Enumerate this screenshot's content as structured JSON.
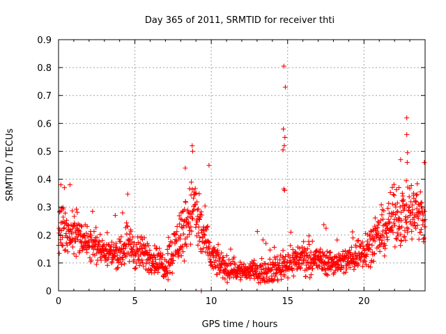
{
  "chart_data": {
    "type": "scatter",
    "title": "Day 365 of 2011, SRMTID for receiver thti",
    "xlabel": "GPS time / hours",
    "ylabel": "SRMTID / TECUs",
    "xlim": [
      0,
      24
    ],
    "ylim": [
      0,
      0.9
    ],
    "x_ticks": [
      0,
      5,
      10,
      15,
      20
    ],
    "x_tick_labels": [
      "0",
      "5",
      "10",
      "15",
      "20"
    ],
    "y_ticks": [
      0,
      0.1,
      0.2,
      0.3,
      0.4,
      0.5,
      0.6,
      0.7,
      0.8,
      0.9
    ],
    "y_tick_labels": [
      "0",
      "0.1",
      "0.2",
      "0.3",
      "0.4",
      "0.5",
      "0.6",
      "0.7",
      "0.8",
      "0.9"
    ],
    "grid": true,
    "marker": "+",
    "color": "#ff0000",
    "profile_hours": [
      0,
      0.3,
      0.6,
      1,
      1.5,
      2,
      3,
      4,
      4.5,
      5,
      6,
      7,
      8,
      8.8,
      9.3,
      10,
      11,
      12,
      13,
      14,
      15,
      16,
      17,
      18,
      19,
      20,
      21,
      22,
      23,
      24
    ],
    "profile_median": [
      0.25,
      0.22,
      0.2,
      0.22,
      0.19,
      0.17,
      0.14,
      0.13,
      0.18,
      0.14,
      0.12,
      0.09,
      0.2,
      0.3,
      0.22,
      0.12,
      0.08,
      0.07,
      0.07,
      0.07,
      0.1,
      0.12,
      0.11,
      0.1,
      0.11,
      0.15,
      0.19,
      0.27,
      0.28,
      0.26
    ],
    "profile_spread": [
      0.07,
      0.06,
      0.05,
      0.06,
      0.05,
      0.04,
      0.035,
      0.035,
      0.05,
      0.045,
      0.04,
      0.035,
      0.07,
      0.09,
      0.08,
      0.04,
      0.03,
      0.025,
      0.025,
      0.03,
      0.035,
      0.04,
      0.035,
      0.03,
      0.035,
      0.045,
      0.05,
      0.07,
      0.08,
      0.08
    ],
    "outliers": [
      {
        "x": 14.75,
        "y": 0.805
      },
      {
        "x": 14.85,
        "y": 0.73
      },
      {
        "x": 14.72,
        "y": 0.58
      },
      {
        "x": 14.82,
        "y": 0.55
      },
      {
        "x": 14.78,
        "y": 0.52
      },
      {
        "x": 14.7,
        "y": 0.505
      },
      {
        "x": 14.75,
        "y": 0.365
      },
      {
        "x": 14.8,
        "y": 0.36
      },
      {
        "x": 22.8,
        "y": 0.62
      },
      {
        "x": 22.8,
        "y": 0.56
      },
      {
        "x": 22.85,
        "y": 0.495
      },
      {
        "x": 8.75,
        "y": 0.52
      },
      {
        "x": 8.78,
        "y": 0.5
      },
      {
        "x": 9.85,
        "y": 0.45
      },
      {
        "x": 9.35,
        "y": 0.0
      },
      {
        "x": 23.95,
        "y": 0.46
      },
      {
        "x": 22.4,
        "y": 0.47
      },
      {
        "x": 8.3,
        "y": 0.44
      },
      {
        "x": 0.15,
        "y": 0.38
      },
      {
        "x": 0.75,
        "y": 0.38
      }
    ]
  }
}
